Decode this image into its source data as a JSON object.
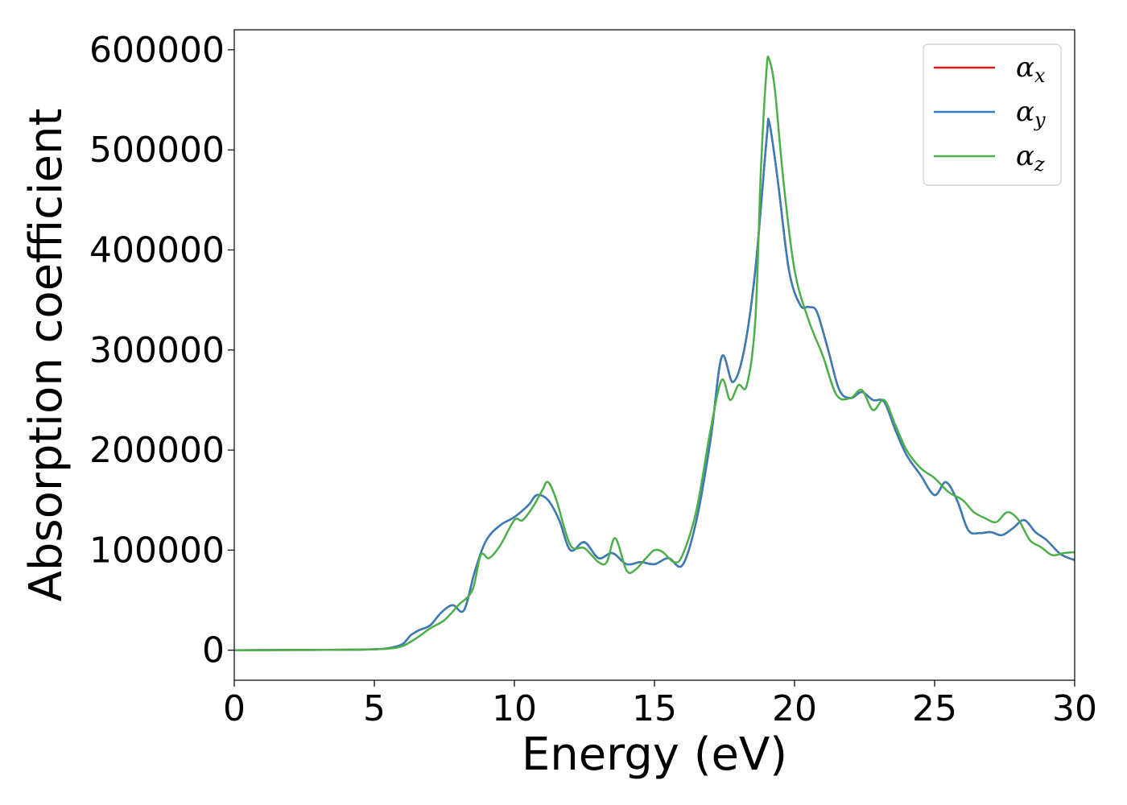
{
  "chart_data": {
    "type": "line",
    "title": "",
    "xlabel": "Energy (eV)",
    "ylabel": "Absorption coefficient",
    "xlim": [
      0,
      30
    ],
    "ylim": [
      -30000,
      620000
    ],
    "xticks": [
      0,
      5,
      10,
      15,
      20,
      25,
      30
    ],
    "xtick_labels": [
      "0",
      "5",
      "10",
      "15",
      "20",
      "25",
      "30"
    ],
    "yticks": [
      0,
      100000,
      200000,
      300000,
      400000,
      500000,
      600000
    ],
    "ytick_labels": [
      "0",
      "100000",
      "200000",
      "300000",
      "400000",
      "500000",
      "600000"
    ],
    "grid": false,
    "legend_position": "top-right",
    "series": [
      {
        "name": "αx",
        "symbol": "α",
        "subscript": "x",
        "color": "#e41a1c",
        "x": [
          0,
          4,
          5,
          5.5,
          6,
          6.3,
          6.6,
          7,
          7.4,
          7.8,
          8.2,
          8.6,
          9,
          9.5,
          10,
          10.5,
          10.8,
          11.2,
          11.6,
          12,
          12.5,
          13,
          13.5,
          14,
          14.5,
          15,
          15.5,
          16,
          16.5,
          17,
          17.4,
          17.8,
          18.2,
          18.6,
          19,
          19.1,
          19.4,
          19.8,
          20.2,
          20.5,
          20.8,
          21.2,
          21.6,
          22,
          22.4,
          22.8,
          23.2,
          23.6,
          24,
          24.5,
          25,
          25.4,
          25.8,
          26.2,
          26.6,
          27,
          27.4,
          27.8,
          28.2,
          28.6,
          29,
          29.5,
          30
        ],
        "y": [
          0,
          500,
          1000,
          2000,
          6000,
          15000,
          20000,
          25000,
          38000,
          45000,
          40000,
          80000,
          110000,
          125000,
          133000,
          145000,
          155000,
          150000,
          130000,
          100000,
          108000,
          92000,
          97000,
          86000,
          88000,
          86000,
          92000,
          85000,
          130000,
          210000,
          293000,
          268000,
          300000,
          380000,
          510000,
          527000,
          470000,
          380000,
          345000,
          343000,
          338000,
          300000,
          260000,
          252000,
          258000,
          250000,
          248000,
          220000,
          195000,
          175000,
          155000,
          168000,
          150000,
          120000,
          117000,
          118000,
          115000,
          122000,
          130000,
          118000,
          110000,
          96000,
          90000
        ]
      },
      {
        "name": "αy",
        "symbol": "α",
        "subscript": "y",
        "color": "#377eb8",
        "x": [
          0,
          4,
          5,
          5.5,
          6,
          6.3,
          6.6,
          7,
          7.4,
          7.8,
          8.2,
          8.6,
          9,
          9.5,
          10,
          10.5,
          10.8,
          11.2,
          11.6,
          12,
          12.5,
          13,
          13.5,
          14,
          14.5,
          15,
          15.5,
          16,
          16.5,
          17,
          17.4,
          17.8,
          18.2,
          18.6,
          19,
          19.1,
          19.4,
          19.8,
          20.2,
          20.5,
          20.8,
          21.2,
          21.6,
          22,
          22.4,
          22.8,
          23.2,
          23.6,
          24,
          24.5,
          25,
          25.4,
          25.8,
          26.2,
          26.6,
          27,
          27.4,
          27.8,
          28.2,
          28.6,
          29,
          29.5,
          30
        ],
        "y": [
          0,
          500,
          1000,
          2000,
          6000,
          15000,
          20000,
          25000,
          38000,
          45000,
          40000,
          80000,
          110000,
          125000,
          133000,
          145000,
          155000,
          150000,
          130000,
          100000,
          108000,
          92000,
          97000,
          86000,
          88000,
          86000,
          92000,
          85000,
          130000,
          210000,
          293000,
          268000,
          300000,
          380000,
          510000,
          527000,
          470000,
          380000,
          345000,
          343000,
          338000,
          300000,
          260000,
          252000,
          258000,
          250000,
          248000,
          220000,
          195000,
          175000,
          155000,
          168000,
          150000,
          120000,
          117000,
          118000,
          115000,
          122000,
          130000,
          118000,
          110000,
          96000,
          90000
        ]
      },
      {
        "name": "αz",
        "symbol": "α",
        "subscript": "z",
        "color": "#4daf4a",
        "x": [
          0,
          4,
          5,
          5.5,
          6,
          6.5,
          7,
          7.5,
          8,
          8.5,
          8.8,
          9.1,
          9.5,
          10,
          10.3,
          10.7,
          11,
          11.2,
          11.5,
          12,
          12.5,
          13,
          13.3,
          13.6,
          14,
          14.3,
          14.7,
          15,
          15.3,
          15.7,
          16,
          16.5,
          17,
          17.4,
          17.7,
          18,
          18.3,
          18.6,
          18.8,
          19,
          19.1,
          19.3,
          19.6,
          20,
          20.5,
          21,
          21.5,
          22,
          22.4,
          22.8,
          23.2,
          23.6,
          24,
          24.5,
          25,
          25.5,
          26,
          26.4,
          26.8,
          27.2,
          27.6,
          28,
          28.4,
          28.8,
          29.2,
          29.6,
          30
        ],
        "y": [
          0,
          500,
          1000,
          1500,
          4000,
          12000,
          22000,
          30000,
          45000,
          60000,
          95000,
          92000,
          105000,
          130000,
          130000,
          145000,
          160000,
          168000,
          150000,
          105000,
          102000,
          88000,
          88000,
          112000,
          80000,
          80000,
          92000,
          100000,
          98000,
          88000,
          95000,
          140000,
          220000,
          270000,
          250000,
          265000,
          265000,
          330000,
          480000,
          580000,
          590000,
          560000,
          470000,
          380000,
          330000,
          295000,
          255000,
          252000,
          260000,
          240000,
          250000,
          225000,
          200000,
          182000,
          172000,
          158000,
          150000,
          138000,
          132000,
          128000,
          138000,
          130000,
          110000,
          103000,
          95000,
          97000,
          98000
        ]
      }
    ]
  }
}
